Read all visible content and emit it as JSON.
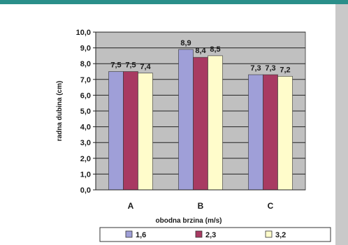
{
  "chart_data": {
    "type": "bar",
    "title": "",
    "xlabel": "obodna brzina (m/s)",
    "ylabel": "radna dubina (cm)",
    "categories": [
      "A",
      "B",
      "C"
    ],
    "ylim": [
      0,
      10
    ],
    "ytick_step": 1,
    "ytick_labels": [
      "0,0",
      "1,0",
      "2,0",
      "3,0",
      "4,0",
      "5,0",
      "6,0",
      "7,0",
      "8,0",
      "9,0",
      "10,0"
    ],
    "grid": true,
    "legend_position": "bottom",
    "series": [
      {
        "name": "1,6",
        "values": [
          7.5,
          8.9,
          7.3
        ],
        "labels": [
          "7,5",
          "8,9",
          "7,3"
        ],
        "color": "#9f9fd8"
      },
      {
        "name": "2,3",
        "values": [
          7.5,
          8.4,
          7.3
        ],
        "labels": [
          "7,5",
          "8,4",
          "7,3"
        ],
        "color": "#a83a62"
      },
      {
        "name": "3,2",
        "values": [
          7.4,
          8.5,
          7.2
        ],
        "labels": [
          "7,4",
          "8,5",
          "7,2"
        ],
        "color": "#fffccb"
      }
    ],
    "plot_background": "#c0c0c0"
  }
}
